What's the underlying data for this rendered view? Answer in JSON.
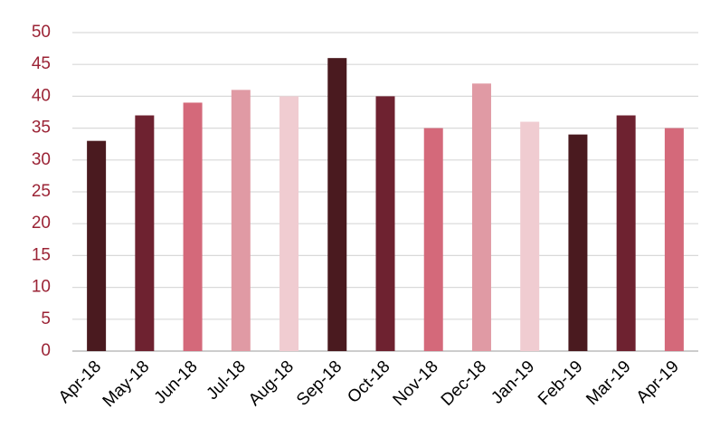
{
  "chart_data": {
    "type": "bar",
    "categories": [
      "Apr-18",
      "May-18",
      "Jun-18",
      "Jul-18",
      "Aug-18",
      "Sep-18",
      "Oct-18",
      "Nov-18",
      "Dec-18",
      "Jan-19",
      "Feb-19",
      "Mar-19",
      "Apr-19"
    ],
    "values": [
      33,
      37,
      39,
      41,
      40,
      46,
      40,
      35,
      42,
      36,
      34,
      37,
      35
    ],
    "colors": [
      "#4a1a1f",
      "#6e2230",
      "#d4697a",
      "#e09aa4",
      "#f0ccd1",
      "#4a1a1f",
      "#6e2230",
      "#d4697a",
      "#e09aa4",
      "#f0ccd1",
      "#4a1a1f",
      "#6e2230",
      "#d4697a"
    ],
    "ylim": [
      0,
      50
    ],
    "yticks": [
      0,
      5,
      10,
      15,
      20,
      25,
      30,
      35,
      40,
      45,
      50
    ],
    "grid": true
  }
}
